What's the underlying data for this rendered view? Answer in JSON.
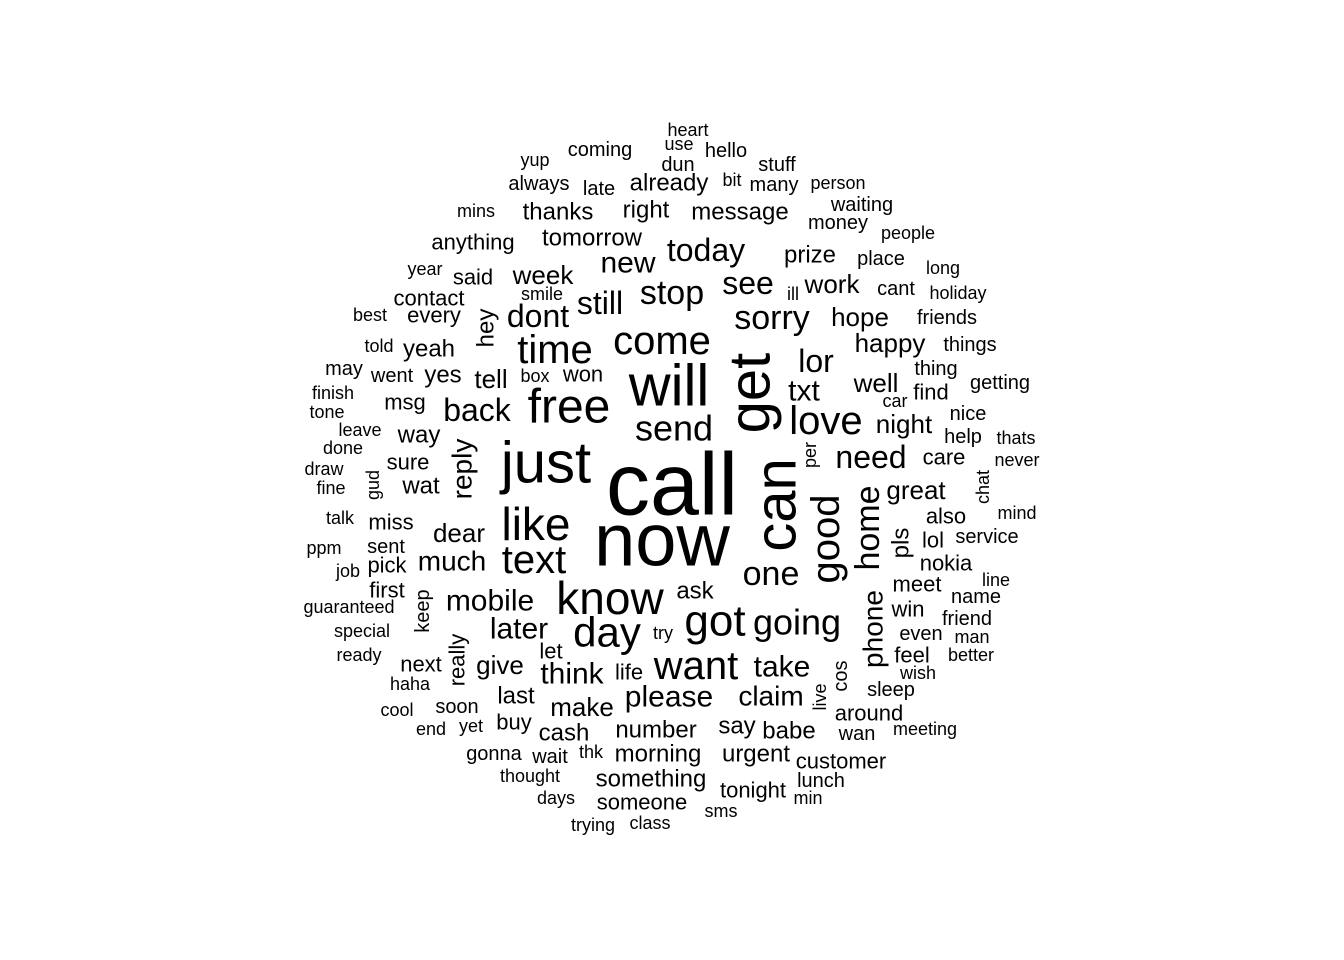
{
  "word_cloud": {
    "color": "#000000",
    "words": [
      {
        "text": "call",
        "weight": 86
      },
      {
        "text": "now",
        "weight": 72
      },
      {
        "text": "can",
        "weight": 58
      },
      {
        "text": "get",
        "weight": 58
      },
      {
        "text": "just",
        "weight": 58
      },
      {
        "text": "will",
        "weight": 58
      },
      {
        "text": "free",
        "weight": 48
      },
      {
        "text": "know",
        "weight": 46
      },
      {
        "text": "like",
        "weight": 46
      },
      {
        "text": "time",
        "weight": 40
      },
      {
        "text": "good",
        "weight": 40
      },
      {
        "text": "come",
        "weight": 40
      },
      {
        "text": "got",
        "weight": 44
      },
      {
        "text": "day",
        "weight": 42
      },
      {
        "text": "text",
        "weight": 40
      },
      {
        "text": "love",
        "weight": 40
      },
      {
        "text": "want",
        "weight": 40
      },
      {
        "text": "going",
        "weight": 36
      },
      {
        "text": "home",
        "weight": 34
      },
      {
        "text": "send",
        "weight": 36
      },
      {
        "text": "one",
        "weight": 34
      },
      {
        "text": "sorry",
        "weight": 34
      },
      {
        "text": "today",
        "weight": 32
      },
      {
        "text": "stop",
        "weight": 34
      },
      {
        "text": "see",
        "weight": 32
      },
      {
        "text": "still",
        "weight": 32
      },
      {
        "text": "dont",
        "weight": 32
      },
      {
        "text": "back",
        "weight": 32
      },
      {
        "text": "lor",
        "weight": 32
      },
      {
        "text": "need",
        "weight": 32
      },
      {
        "text": "txt",
        "weight": 30
      },
      {
        "text": "later",
        "weight": 30
      },
      {
        "text": "mobile",
        "weight": 30
      },
      {
        "text": "phone",
        "weight": 28
      },
      {
        "text": "think",
        "weight": 30
      },
      {
        "text": "please",
        "weight": 30
      },
      {
        "text": "take",
        "weight": 30
      },
      {
        "text": "new",
        "weight": 30
      },
      {
        "text": "reply",
        "weight": 28
      },
      {
        "text": "much",
        "weight": 28
      },
      {
        "text": "claim",
        "weight": 28
      },
      {
        "text": "great",
        "weight": 26
      },
      {
        "text": "night",
        "weight": 26
      },
      {
        "text": "well",
        "weight": 26
      },
      {
        "text": "happy",
        "weight": 26
      },
      {
        "text": "hope",
        "weight": 26
      },
      {
        "text": "prize",
        "weight": 24
      },
      {
        "text": "work",
        "weight": 26
      },
      {
        "text": "week",
        "weight": 26
      },
      {
        "text": "dear",
        "weight": 26
      },
      {
        "text": "tell",
        "weight": 26
      },
      {
        "text": "give",
        "weight": 26
      },
      {
        "text": "make",
        "weight": 26
      },
      {
        "text": "number",
        "weight": 24
      },
      {
        "text": "message",
        "weight": 24
      },
      {
        "text": "right",
        "weight": 24
      },
      {
        "text": "already",
        "weight": 24
      },
      {
        "text": "tomorrow",
        "weight": 24
      },
      {
        "text": "way",
        "weight": 24
      },
      {
        "text": "yes",
        "weight": 24
      },
      {
        "text": "yeah",
        "weight": 24
      },
      {
        "text": "hey",
        "weight": 24
      },
      {
        "text": "pls",
        "weight": 24
      },
      {
        "text": "wat",
        "weight": 24
      },
      {
        "text": "really",
        "weight": 22
      },
      {
        "text": "ask",
        "weight": 24
      },
      {
        "text": "say",
        "weight": 24
      },
      {
        "text": "babe",
        "weight": 24
      },
      {
        "text": "last",
        "weight": 24
      },
      {
        "text": "cash",
        "weight": 24
      },
      {
        "text": "morning",
        "weight": 24
      },
      {
        "text": "urgent",
        "weight": 24
      },
      {
        "text": "something",
        "weight": 24
      },
      {
        "text": "thanks",
        "weight": 24
      },
      {
        "text": "anything",
        "weight": 22
      },
      {
        "text": "said",
        "weight": 22
      },
      {
        "text": "contact",
        "weight": 22
      },
      {
        "text": "every",
        "weight": 22
      },
      {
        "text": "won",
        "weight": 22
      },
      {
        "text": "msg",
        "weight": 22
      },
      {
        "text": "miss",
        "weight": 22
      },
      {
        "text": "sure",
        "weight": 22
      },
      {
        "text": "pick",
        "weight": 22
      },
      {
        "text": "first",
        "weight": 22
      },
      {
        "text": "meet",
        "weight": 22
      },
      {
        "text": "win",
        "weight": 22
      },
      {
        "text": "even",
        "weight": 20
      },
      {
        "text": "feel",
        "weight": 22
      },
      {
        "text": "life",
        "weight": 22
      },
      {
        "text": "let",
        "weight": 22
      },
      {
        "text": "next",
        "weight": 22
      },
      {
        "text": "soon",
        "weight": 20
      },
      {
        "text": "buy",
        "weight": 22
      },
      {
        "text": "someone",
        "weight": 22
      },
      {
        "text": "tonight",
        "weight": 22
      },
      {
        "text": "customer",
        "weight": 22
      },
      {
        "text": "around",
        "weight": 22
      },
      {
        "text": "cos",
        "weight": 20
      },
      {
        "text": "live",
        "weight": 18
      },
      {
        "text": "also",
        "weight": 22
      },
      {
        "text": "lol",
        "weight": 22
      },
      {
        "text": "nokia",
        "weight": 22
      },
      {
        "text": "find",
        "weight": 22
      },
      {
        "text": "care",
        "weight": 22
      },
      {
        "text": "sent",
        "weight": 20
      },
      {
        "text": "keep",
        "weight": 20
      },
      {
        "text": "coming",
        "weight": 20
      },
      {
        "text": "always",
        "weight": 20
      },
      {
        "text": "late",
        "weight": 20
      },
      {
        "text": "dun",
        "weight": 20
      },
      {
        "text": "hello",
        "weight": 20
      },
      {
        "text": "many",
        "weight": 20
      },
      {
        "text": "stuff",
        "weight": 20
      },
      {
        "text": "money",
        "weight": 20
      },
      {
        "text": "waiting",
        "weight": 20
      },
      {
        "text": "place",
        "weight": 20
      },
      {
        "text": "cant",
        "weight": 20
      },
      {
        "text": "friends",
        "weight": 20
      },
      {
        "text": "things",
        "weight": 20
      },
      {
        "text": "thing",
        "weight": 20
      },
      {
        "text": "getting",
        "weight": 20
      },
      {
        "text": "nice",
        "weight": 20
      },
      {
        "text": "help",
        "weight": 20
      },
      {
        "text": "service",
        "weight": 20
      },
      {
        "text": "name",
        "weight": 20
      },
      {
        "text": "friend",
        "weight": 20
      },
      {
        "text": "sleep",
        "weight": 20
      },
      {
        "text": "wan",
        "weight": 20
      },
      {
        "text": "lunch",
        "weight": 20
      },
      {
        "text": "min",
        "weight": 18
      },
      {
        "text": "sms",
        "weight": 18
      },
      {
        "text": "class",
        "weight": 18
      },
      {
        "text": "trying",
        "weight": 18
      },
      {
        "text": "days",
        "weight": 18
      },
      {
        "text": "thought",
        "weight": 18
      },
      {
        "text": "wait",
        "weight": 20
      },
      {
        "text": "thk",
        "weight": 18
      },
      {
        "text": "gonna",
        "weight": 20
      },
      {
        "text": "end",
        "weight": 18
      },
      {
        "text": "yet",
        "weight": 18
      },
      {
        "text": "cool",
        "weight": 18
      },
      {
        "text": "haha",
        "weight": 18
      },
      {
        "text": "ready",
        "weight": 18
      },
      {
        "text": "special",
        "weight": 18
      },
      {
        "text": "guaranteed",
        "weight": 18
      },
      {
        "text": "job",
        "weight": 18
      },
      {
        "text": "ppm",
        "weight": 18
      },
      {
        "text": "talk",
        "weight": 18
      },
      {
        "text": "fine",
        "weight": 18
      },
      {
        "text": "draw",
        "weight": 18
      },
      {
        "text": "done",
        "weight": 18
      },
      {
        "text": "tone",
        "weight": 18
      },
      {
        "text": "leave",
        "weight": 18
      },
      {
        "text": "finish",
        "weight": 18
      },
      {
        "text": "may",
        "weight": 18
      },
      {
        "text": "went",
        "weight": 20
      },
      {
        "text": "told",
        "weight": 18
      },
      {
        "text": "best",
        "weight": 18
      },
      {
        "text": "year",
        "weight": 18
      },
      {
        "text": "mins",
        "weight": 18
      },
      {
        "text": "yup",
        "weight": 18
      },
      {
        "text": "heart",
        "weight": 18
      },
      {
        "text": "use",
        "weight": 18
      },
      {
        "text": "bit",
        "weight": 18
      },
      {
        "text": "person",
        "weight": 18
      },
      {
        "text": "people",
        "weight": 18
      },
      {
        "text": "long",
        "weight": 18
      },
      {
        "text": "holiday",
        "weight": 18
      },
      {
        "text": "smile",
        "weight": 18
      },
      {
        "text": "ill",
        "weight": 18
      },
      {
        "text": "box",
        "weight": 18
      },
      {
        "text": "car",
        "weight": 18
      },
      {
        "text": "per",
        "weight": 18
      },
      {
        "text": "gud",
        "weight": 18
      },
      {
        "text": "chat",
        "weight": 18
      },
      {
        "text": "thats",
        "weight": 18
      },
      {
        "text": "never",
        "weight": 18
      },
      {
        "text": "mind",
        "weight": 18
      },
      {
        "text": "line",
        "weight": 18
      },
      {
        "text": "man",
        "weight": 18
      },
      {
        "text": "better",
        "weight": 18
      },
      {
        "text": "wish",
        "weight": 18
      },
      {
        "text": "meeting",
        "weight": 18
      },
      {
        "text": "try",
        "weight": 18
      }
    ]
  }
}
